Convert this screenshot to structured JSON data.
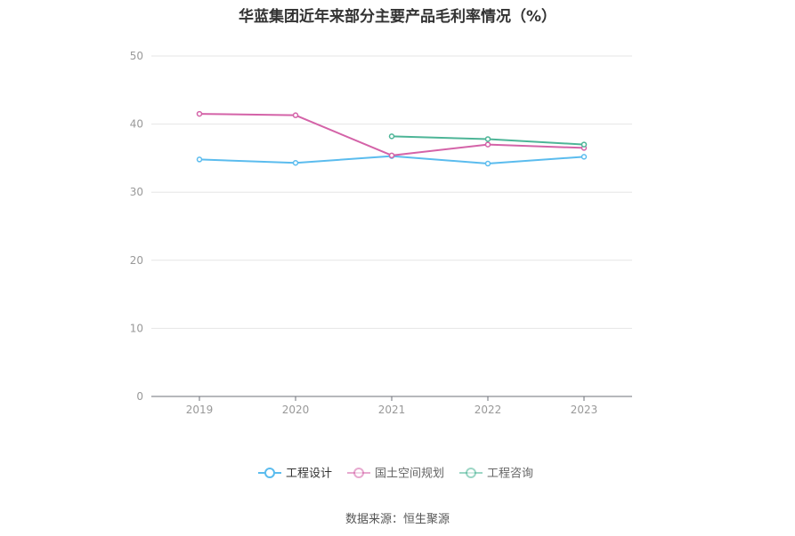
{
  "chart_data": {
    "type": "line",
    "title": "华蓝集团近年来部分主要产品毛利率情况（%）",
    "categories": [
      "2019",
      "2020",
      "2021",
      "2022",
      "2023"
    ],
    "ylim": [
      0,
      50
    ],
    "yticks": [
      0,
      10,
      20,
      30,
      40,
      50
    ],
    "grid": true,
    "legend_position": "bottom",
    "series": [
      {
        "name": "工程设计",
        "color": "#5bbcee",
        "values": [
          34.8,
          34.3,
          35.3,
          34.2,
          35.2
        ]
      },
      {
        "name": "国土空间规划",
        "color": "#d463a8",
        "values": [
          41.5,
          41.3,
          35.4,
          37.0,
          36.5
        ]
      },
      {
        "name": "工程咨询",
        "color": "#4db597",
        "values": [
          null,
          null,
          38.2,
          37.8,
          37.0
        ]
      }
    ],
    "source": "数据来源：恒生聚源"
  }
}
